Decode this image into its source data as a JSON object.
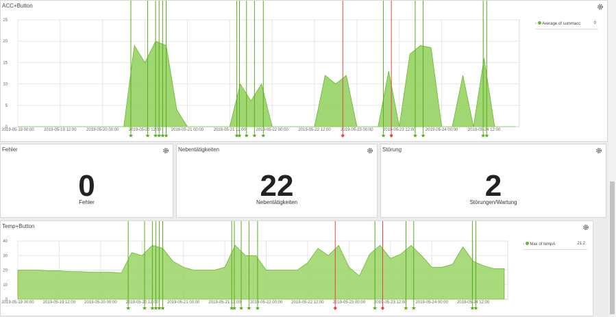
{
  "acc_chart": {
    "title": "ACC+Button",
    "type": "area",
    "x": [
      "2019-05-19 00:00",
      "2019-05-19 03:00",
      "2019-05-19 06:00",
      "2019-05-19 09:00",
      "2019-05-19 12:00",
      "2019-05-19 15:00",
      "2019-05-19 18:00",
      "2019-05-19 21:00",
      "2019-05-20 00:00",
      "2019-05-20 03:00",
      "2019-05-20 06:00",
      "2019-05-20 09:00",
      "2019-05-20 12:00",
      "2019-05-20 15:00",
      "2019-05-20 18:00",
      "2019-05-20 21:00",
      "2019-05-21 00:00",
      "2019-05-21 03:00",
      "2019-05-21 06:00",
      "2019-05-21 09:00",
      "2019-05-21 12:00",
      "2019-05-21 15:00",
      "2019-05-21 18:00",
      "2019-05-21 21:00",
      "2019-05-22 00:00",
      "2019-05-22 03:00",
      "2019-05-22 06:00",
      "2019-05-22 09:00",
      "2019-05-22 12:00",
      "2019-05-22 15:00",
      "2019-05-22 18:00",
      "2019-05-22 21:00",
      "2019-05-23 00:00",
      "2019-05-23 03:00",
      "2019-05-23 06:00",
      "2019-05-23 09:00",
      "2019-05-23 12:00",
      "2019-05-23 15:00",
      "2019-05-23 18:00",
      "2019-05-23 21:00",
      "2019-05-24 00:00",
      "2019-05-24 03:00",
      "2019-05-24 06:00",
      "2019-05-24 09:00",
      "2019-05-24 12:00",
      "2019-05-24 15:00",
      "2019-05-24 18:00",
      "2019-05-24 21:00"
    ],
    "values": [
      0,
      0,
      0,
      0,
      0,
      0,
      0,
      0,
      0,
      0,
      0,
      19,
      15,
      20,
      19,
      4,
      0,
      0,
      0,
      0,
      0,
      10,
      6,
      10,
      0,
      0,
      0,
      0,
      0,
      12,
      10,
      12,
      0,
      0,
      0,
      13,
      0,
      17,
      19,
      18.5,
      0,
      0,
      12,
      0,
      16,
      0,
      0,
      0
    ],
    "color": "#8fd05a",
    "line_color": "#6ab82e",
    "xlim": [
      "2019-05-19 00:00",
      "2019-05-24 22:00"
    ],
    "xticks": [
      "2019-05-19 00:00",
      "2019-05-19 12:00",
      "2019-05-20 00:00",
      "2019-05-20 12:00",
      "2019-05-21 00:00",
      "2019-05-21 12:00",
      "2019-05-22 00:00",
      "2019-05-22 12:00",
      "2019-05-23 00:00",
      "2019-05-23 12:00",
      "2019-05-24 00:00",
      "2019-05-24 12:00"
    ],
    "ylim": [
      0,
      25
    ],
    "yticks": [
      0,
      5,
      10,
      15,
      20,
      25
    ],
    "grid": true,
    "legend": {
      "name": "Average of summacc",
      "value": 0
    }
  },
  "temp_chart": {
    "title": "Temp+Button",
    "type": "area",
    "x": [
      "2019-05-19 00:00",
      "2019-05-19 03:00",
      "2019-05-19 06:00",
      "2019-05-19 09:00",
      "2019-05-19 12:00",
      "2019-05-19 15:00",
      "2019-05-19 18:00",
      "2019-05-19 21:00",
      "2019-05-20 00:00",
      "2019-05-20 03:00",
      "2019-05-20 06:00",
      "2019-05-20 09:00",
      "2019-05-20 12:00",
      "2019-05-20 15:00",
      "2019-05-20 18:00",
      "2019-05-20 21:00",
      "2019-05-21 00:00",
      "2019-05-21 03:00",
      "2019-05-21 06:00",
      "2019-05-21 09:00",
      "2019-05-21 12:00",
      "2019-05-21 15:00",
      "2019-05-21 18:00",
      "2019-05-21 21:00",
      "2019-05-22 00:00",
      "2019-05-22 03:00",
      "2019-05-22 06:00",
      "2019-05-22 09:00",
      "2019-05-22 12:00",
      "2019-05-22 15:00",
      "2019-05-22 18:00",
      "2019-05-22 21:00",
      "2019-05-23 00:00",
      "2019-05-23 03:00",
      "2019-05-23 06:00",
      "2019-05-23 09:00",
      "2019-05-23 12:00",
      "2019-05-23 15:00",
      "2019-05-23 18:00",
      "2019-05-23 21:00",
      "2019-05-24 00:00",
      "2019-05-24 03:00",
      "2019-05-24 06:00",
      "2019-05-24 09:00",
      "2019-05-24 12:00",
      "2019-05-24 15:00",
      "2019-05-24 18:00",
      "2019-05-24 21:00"
    ],
    "values": [
      20,
      20,
      20,
      19.5,
      19.5,
      19,
      19,
      18.5,
      18.5,
      18.5,
      18,
      32,
      30,
      37,
      35,
      26,
      22,
      20,
      20,
      20,
      22,
      37,
      30,
      30,
      20,
      20,
      20,
      20,
      25,
      35,
      30,
      37,
      22,
      16,
      31,
      37,
      28,
      31,
      37,
      30,
      22,
      22,
      24,
      36,
      26,
      23,
      21,
      21
    ],
    "color": "#9ad464",
    "line_color": "#6ab82e",
    "xlim": [
      "2019-05-19 00:00",
      "2019-05-24 22:00"
    ],
    "xticks": [
      "2019-05-19 00:00",
      "2019-05-19 12:00",
      "2019-05-20 00:00",
      "2019-05-20 12:00",
      "2019-05-21 00:00",
      "2019-05-21 12:00",
      "2019-05-22 00:00",
      "2019-05-22 12:00",
      "2019-05-23 00:00",
      "2019-05-23 12:00",
      "2019-05-24 00:00",
      "2019-05-24 12:00"
    ],
    "ylim": [
      0,
      40
    ],
    "yticks": [
      0,
      10,
      20,
      30,
      40
    ],
    "grid": true,
    "legend": {
      "name": "Max of tempA",
      "value": 21.2
    }
  },
  "metrics": [
    {
      "title": "Fehler",
      "value": 0,
      "label": "Fehler"
    },
    {
      "title": "Nebentätigkeiten",
      "value": 22,
      "label": "Nebentätigkeiten"
    },
    {
      "title": "Störung",
      "value": 2,
      "label": "Störungen/Wartung"
    }
  ],
  "events": {
    "green": {
      "color": "#5aaa1e",
      "x": [
        "2019-05-20 08:00",
        "2019-05-20 12:45",
        "2019-05-20 15:00",
        "2019-05-20 16:00",
        "2019-05-20 17:00",
        "2019-05-20 18:00",
        "2019-05-21 14:00",
        "2019-05-21 14:45",
        "2019-05-21 16:45",
        "2019-05-21 19:00",
        "2019-05-21 21:30",
        "2019-05-23 07:30",
        "2019-05-23 16:30",
        "2019-05-23 18:45",
        "2019-05-24 11:45",
        "2019-05-24 12:45"
      ]
    },
    "red": {
      "color": "#e0463c",
      "x": [
        "2019-05-22 20:00",
        "2019-05-23 09:45"
      ]
    }
  }
}
